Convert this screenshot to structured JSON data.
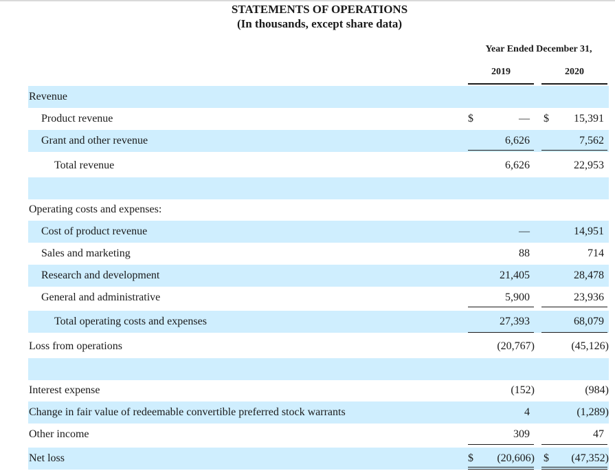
{
  "header": {
    "title": "STATEMENTS OF OPERATIONS",
    "subtitle": "(In thousands, except share data)",
    "period": "Year Ended December 31,",
    "col_2019": "2019",
    "col_2020": "2020"
  },
  "rows": {
    "revenue": {
      "label": "Revenue"
    },
    "product_revenue": {
      "label": "Product revenue",
      "cur2019": "$",
      "v2019": "—",
      "cur2020": "$",
      "v2020": "15,391"
    },
    "grant_revenue": {
      "label": "Grant and other revenue",
      "v2019": "6,626",
      "v2020": "7,562"
    },
    "total_revenue": {
      "label": "Total revenue",
      "v2019": "6,626",
      "v2020": "22,953"
    },
    "operating_header": {
      "label": "Operating costs and expenses:"
    },
    "cost_product": {
      "label": "Cost of product revenue",
      "v2019": "—",
      "v2020": "14,951"
    },
    "sales_marketing": {
      "label": "Sales and marketing",
      "v2019": "88",
      "v2020": "714"
    },
    "rnd": {
      "label": "Research and development",
      "v2019": "21,405",
      "v2020": "28,478"
    },
    "gna": {
      "label": "General and administrative",
      "v2019": "5,900",
      "v2020": "23,936"
    },
    "total_operating": {
      "label": "Total operating costs and expenses",
      "v2019": "27,393",
      "v2020": "68,079"
    },
    "loss_operations": {
      "label": "Loss from operations",
      "v2019": "(20,767)",
      "v2020": "(45,126)"
    },
    "interest_expense": {
      "label": "Interest expense",
      "v2019": "(152)",
      "v2020": "(984)"
    },
    "warrants_change": {
      "label": "Change in fair value of redeemable convertible preferred stock warrants",
      "v2019": "4",
      "v2020": "(1,289)"
    },
    "other_income": {
      "label": "Other income",
      "v2019": "309",
      "v2020": "47"
    },
    "net_loss": {
      "label": "Net loss",
      "cur2019": "$",
      "v2019": "(20,606)",
      "cur2020": "$",
      "v2020": "(47,352)"
    }
  },
  "colors": {
    "band": "#cfeefe",
    "text": "#1a1a1a"
  }
}
